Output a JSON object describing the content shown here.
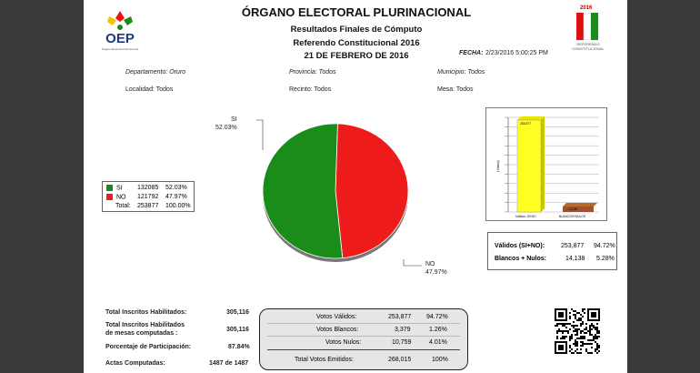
{
  "header": {
    "org": "ÓRGANO ELECTORAL PLURINACIONAL",
    "subtitle1": "Resultados Finales de Cómputo",
    "subtitle2": "Referendo Constitucional 2016",
    "date_title": "21 DE FEBRERO DE 2016",
    "fecha_label": "FECHA:",
    "fecha_value": "2/23/2016 5:00:25 PM",
    "logo_left_text": "OEP",
    "logo_left_sub": "Órgano Electoral Plurinacional",
    "logo_right_year": "2016",
    "logo_right_text1": "REFERENDO",
    "logo_right_text2": "CONSTITUCIONAL"
  },
  "filters": {
    "departamento": "Departamento: Oruro",
    "provincia": "Provincia: Todos",
    "municipio": "Municipio: Todos",
    "localidad": "Localidad: Todos",
    "recinto": "Recinto: Todos",
    "mesa": "Mesa: Todos"
  },
  "pie_labels": {
    "si_name": "SI",
    "si_pct": "52.03%",
    "no_name": "NO",
    "no_pct": "47.97%"
  },
  "legend": {
    "si_label": "SI",
    "si_votes": "132085",
    "si_pct": "52.03%",
    "no_label": "NO",
    "no_votes": "121792",
    "no_pct": "47.97%",
    "total_label": "Total:",
    "total_votes": "253877",
    "total_pct": "100.00%",
    "si_color": "#1a8c1a",
    "no_color": "#ee1b1b"
  },
  "bar_chart": {
    "y_axis_label": "(Votos)",
    "bar1_label": "Válidos: SI+NO",
    "bar1_value": "253,877",
    "bar2_label": "BLANCOS+NULOS",
    "bar2_value": "14,138",
    "bar1_color": "#ffff22",
    "bar2_color": "#a0522d"
  },
  "chart_data": [
    {
      "type": "pie",
      "categories": [
        "SI",
        "NO"
      ],
      "values": [
        52.03,
        47.97
      ],
      "colors": [
        "#1a8c1a",
        "#ee1b1b"
      ]
    },
    {
      "type": "bar",
      "categories": [
        "Válidos: SI+NO",
        "BLANCOS+NULOS"
      ],
      "values": [
        253877,
        14138
      ],
      "ylabel": "(Votos)"
    }
  ],
  "valid_box": {
    "r1_label": "Válidos (SI+NO):",
    "r1_votes": "253,877",
    "r1_pct": "94.72%",
    "r2_label": "Blancos + Nulos:",
    "r2_votes": "14,138",
    "r2_pct": "5.28%"
  },
  "totals": {
    "inscritos_label": "Total Inscritos Habilitados:",
    "inscritos_value": "305,116",
    "mesas_label1": "Total Inscritos Habilitados",
    "mesas_label2": "de mesas computadas :",
    "mesas_value": "305,116",
    "participacion_label": "Porcentaje de Participación:",
    "participacion_value": "87.84%",
    "actas_label": "Actas Computadas:",
    "actas_value": "1487 de 1487"
  },
  "votes": {
    "validos_label": "Votos Válidos:",
    "validos_value": "253,877",
    "validos_pct": "94.72%",
    "blancos_label": "Votos Blancos:",
    "blancos_value": "3,379",
    "blancos_pct": "1.26%",
    "nulos_label": "Votos Nulos:",
    "nulos_value": "10,759",
    "nulos_pct": "4.01%",
    "emitidos_label": "Total Votos Emitidos:",
    "emitidos_value": "268,015",
    "emitidos_pct": "100%"
  }
}
